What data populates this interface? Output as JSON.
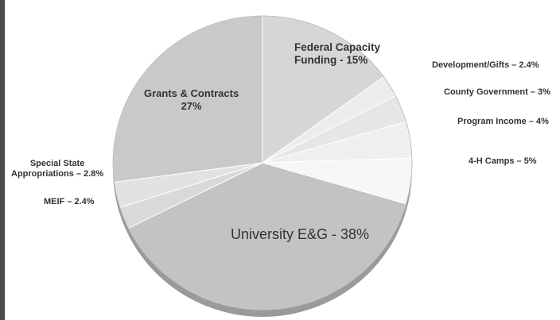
{
  "colors": {
    "accent": "#c2c2c2",
    "text": "#333333",
    "slices": {
      "University E&G": "#c3c3c3",
      "Grants & Contracts": "#c9c9c9",
      "Federal Capacity Funding": "#d6d6d6",
      "Development/Gifts": "#ececec",
      "County Government": "#e6e6e6",
      "Program Income": "#efefef",
      "4-H Camps": "#f6f6f6",
      "Special State Appropriations": "#e2e2e2",
      "MEIF": "#d9d9d9"
    }
  },
  "chart_data": {
    "type": "pie",
    "title": "",
    "slices": [
      {
        "name": "Federal Capacity Funding",
        "value": 15,
        "label_lines": [
          "Federal Capacity",
          "Funding  -  15%"
        ]
      },
      {
        "name": "Development/Gifts",
        "value": 2.4,
        "label_lines": [
          "Development/Gifts – 2.4%"
        ]
      },
      {
        "name": "County Government",
        "value": 3,
        "label_lines": [
          "County Government – 3%"
        ]
      },
      {
        "name": "Program Income",
        "value": 4,
        "label_lines": [
          "Program Income – 4%"
        ]
      },
      {
        "name": "4-H Camps",
        "value": 5,
        "label_lines": [
          "4-H Camps – 5%"
        ]
      },
      {
        "name": "University E&G",
        "value": 38,
        "label_lines": [
          "University E&G   -   38%"
        ]
      },
      {
        "name": "MEIF",
        "value": 2.4,
        "label_lines": [
          "MEIF – 2.4%"
        ]
      },
      {
        "name": "Special State Appropriations",
        "value": 2.8,
        "label_lines": [
          "Special State",
          "Appropriations  – 2.8%"
        ]
      },
      {
        "name": "Grants & Contracts",
        "value": 27,
        "label_lines": [
          "Grants & Contracts",
          "27%"
        ]
      }
    ],
    "legend": "none",
    "labels_placement": "on-slices-and-outside"
  }
}
